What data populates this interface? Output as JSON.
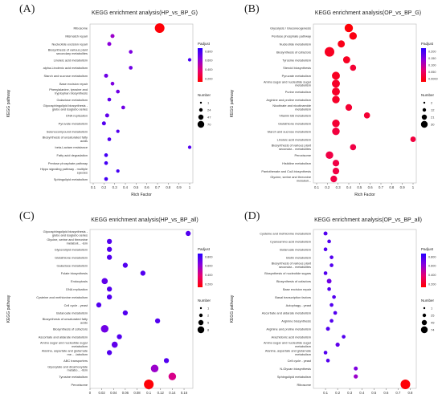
{
  "chart_data": [
    {
      "letter": "(A)",
      "type": "scatter",
      "title": "KEGG enrichment analysis(HP_vs_BP_G)",
      "xlabel": "Rich Factor",
      "ylabel": "KEGG pathway",
      "xticks": [
        "0.1",
        "0.2",
        "0.3",
        "0.4",
        "0.5",
        "0.6",
        "0.7",
        "0.8",
        "0.9",
        "1"
      ],
      "xlim": [
        0.07,
        1.03
      ],
      "legend_padj_title": "Padjust",
      "padj_ticks": [
        "0.800",
        "0.600",
        "0.400",
        "0.200"
      ],
      "legend_number_title": "Number",
      "number_ticks": [
        "1",
        "24",
        "47",
        "70"
      ],
      "points": [
        {
          "label": "Ribosome",
          "x": 0.72,
          "n": 70,
          "p": 0.02
        },
        {
          "label": "Mismatch repair",
          "x": 0.28,
          "n": 3,
          "p": 0.6
        },
        {
          "label": "Nucleotide excision repair",
          "x": 0.25,
          "n": 3,
          "p": 0.65
        },
        {
          "label": "Biosynthesis of various plant secondary metabolites",
          "x": 0.45,
          "n": 2,
          "p": 0.7
        },
        {
          "label": "Linoleic acid metabolism",
          "x": 1.0,
          "n": 1,
          "p": 0.9
        },
        {
          "label": "alpha-Linolenic acid metabolism",
          "x": 0.45,
          "n": 2,
          "p": 0.75
        },
        {
          "label": "Starch and sucrose metabolism",
          "x": 0.22,
          "n": 3,
          "p": 0.75
        },
        {
          "label": "Base excision repair",
          "x": 0.28,
          "n": 2,
          "p": 0.7
        },
        {
          "label": "Phenylalanine, tyrosine and tryptophan biosynthesis",
          "x": 0.33,
          "n": 2,
          "p": 0.75
        },
        {
          "label": "Galactose metabolism",
          "x": 0.25,
          "n": 2,
          "p": 0.8
        },
        {
          "label": "Glycosphingolipid biosynthesis - globo and isoglobo series",
          "x": 0.38,
          "n": 2,
          "p": 0.75
        },
        {
          "label": "DNA replication",
          "x": 0.23,
          "n": 3,
          "p": 0.8
        },
        {
          "label": "Pyruvate metabolism",
          "x": 0.2,
          "n": 3,
          "p": 0.85
        },
        {
          "label": "Selenocompound metabolism",
          "x": 0.33,
          "n": 1,
          "p": 0.85
        },
        {
          "label": "Biosynthesis of unsaturated fatty acids",
          "x": 0.25,
          "n": 2,
          "p": 0.85
        },
        {
          "label": "beta-Lactam resistance",
          "x": 1.0,
          "n": 1,
          "p": 0.85
        },
        {
          "label": "Fatty acid degradation",
          "x": 0.22,
          "n": 2,
          "p": 0.9
        },
        {
          "label": "Pentose phosphate pathway",
          "x": 0.22,
          "n": 2,
          "p": 0.9
        },
        {
          "label": "Hippo signaling pathway - multiple species",
          "x": 0.33,
          "n": 1,
          "p": 0.9
        },
        {
          "label": "Sphingolipid metabolism",
          "x": 0.22,
          "n": 2,
          "p": 0.9
        }
      ]
    },
    {
      "letter": "(B)",
      "type": "scatter",
      "title": "KEGG enrichment analysis(OP_vs_BP_G)",
      "xlabel": "Rich Factor",
      "ylabel": "KEGG pathway",
      "xticks": [
        "0.1",
        "0.2",
        "0.3",
        "0.4",
        "0.5",
        "0.6",
        "0.7",
        "0.8",
        "0.9",
        "1"
      ],
      "xlim": [
        0.07,
        1.03
      ],
      "legend_padj_title": "Padjust",
      "padj_ticks": [
        "0.200",
        "0.150",
        "0.100",
        "0.050",
        "0.0000"
      ],
      "legend_number_title": "Number",
      "number_ticks": [
        "2",
        "12",
        "21",
        "30"
      ],
      "points": [
        {
          "label": "Glycolysis / Gluconeogenesis",
          "x": 0.4,
          "n": 8,
          "p": 0.02
        },
        {
          "label": "Pentose phosphate pathway",
          "x": 0.44,
          "n": 6,
          "p": 0.05
        },
        {
          "label": "Nucleotide metabolism",
          "x": 0.33,
          "n": 5,
          "p": 0.07
        },
        {
          "label": "Biosynthesis of cofactors",
          "x": 0.22,
          "n": 12,
          "p": 0.1
        },
        {
          "label": "Tyrosine metabolism",
          "x": 0.38,
          "n": 5,
          "p": 0.1
        },
        {
          "label": "Steroid biosynthesis",
          "x": 0.44,
          "n": 3,
          "p": 0.15
        },
        {
          "label": "Pyruvate metabolism",
          "x": 0.28,
          "n": 7,
          "p": 0.1
        },
        {
          "label": "Amino sugar and nucleotide sugar metabolism",
          "x": 0.28,
          "n": 7,
          "p": 0.12
        },
        {
          "label": "Purine metabolism",
          "x": 0.28,
          "n": 7,
          "p": 0.12
        },
        {
          "label": "Arginine and proline metabolism",
          "x": 0.28,
          "n": 6,
          "p": 0.12
        },
        {
          "label": "Nicotinate and nicotinamide metabolism",
          "x": 0.4,
          "n": 4,
          "p": 0.15
        },
        {
          "label": "Vitamin B6 metabolism",
          "x": 0.57,
          "n": 3,
          "p": 0.15
        },
        {
          "label": "Glutathione metabolism",
          "x": 0.28,
          "n": 6,
          "p": 0.15
        },
        {
          "label": "Starch and sucrose metabolism",
          "x": 0.28,
          "n": 6,
          "p": 0.18
        },
        {
          "label": "Linoleic acid metabolism",
          "x": 1.0,
          "n": 2,
          "p": 0.18
        },
        {
          "label": "Biosynthesis of various plant secondar... metabolites",
          "x": 0.44,
          "n": 3,
          "p": 0.2
        },
        {
          "label": "Peroxisome",
          "x": 0.22,
          "n": 6,
          "p": 0.2
        },
        {
          "label": "Histidine metabolism",
          "x": 0.28,
          "n": 4,
          "p": 0.2
        },
        {
          "label": "Pantothenate and CoA biosynthesis",
          "x": 0.28,
          "n": 4,
          "p": 0.2
        },
        {
          "label": "Glycine, serine and threonine metaboli...",
          "x": 0.26,
          "n": 4,
          "p": 0.2
        }
      ]
    },
    {
      "letter": "(C)",
      "type": "scatter",
      "title": "KEGG enrichment analysis(HP_vs_BP_all)",
      "xlabel": "Rich Factor",
      "ylabel": "KEGG pathway",
      "xticks": [
        "0",
        "0.02",
        "0.04",
        "0.06",
        "0.08",
        "0.1",
        "0.12",
        "0.14",
        "0.16"
      ],
      "xlim": [
        0,
        0.175
      ],
      "legend_padj_title": "Padjust",
      "padj_ticks": [
        "0.800",
        "0.600",
        "0.400",
        "0.200"
      ],
      "legend_number_title": "Number",
      "number_ticks": [
        "1",
        "2",
        "5",
        "8"
      ],
      "points": [
        {
          "label": "Glycosphingolipid biosynthesis - globo and isoglobo series",
          "x": 0.167,
          "n": 1,
          "p": 0.85
        },
        {
          "label": "Glycine, serine and threonine metaboli... -ism",
          "x": 0.033,
          "n": 1,
          "p": 0.85
        },
        {
          "label": "Glycerolipid metabolism",
          "x": 0.033,
          "n": 1,
          "p": 0.85
        },
        {
          "label": "Glutathione metabolism",
          "x": 0.033,
          "n": 1,
          "p": 0.85
        },
        {
          "label": "Galactose metabolism",
          "x": 0.06,
          "n": 1,
          "p": 0.85
        },
        {
          "label": "Folate biosynthesis",
          "x": 0.09,
          "n": 1,
          "p": 0.85
        },
        {
          "label": "Endocytosis",
          "x": 0.025,
          "n": 2,
          "p": 0.8
        },
        {
          "label": "DNA replication",
          "x": 0.033,
          "n": 1,
          "p": 0.85
        },
        {
          "label": "Cysteine and methionine metabolism",
          "x": 0.033,
          "n": 1,
          "p": 0.85
        },
        {
          "label": "Cell cycle - yeast",
          "x": 0.015,
          "n": 1,
          "p": 0.85
        },
        {
          "label": "Butanoate metabolism",
          "x": 0.06,
          "n": 1,
          "p": 0.85
        },
        {
          "label": "Biosynthesis of unsaturated fatty acids",
          "x": 0.115,
          "n": 1,
          "p": 0.85
        },
        {
          "label": "Biosynthesis of cofactors",
          "x": 0.025,
          "n": 4,
          "p": 0.75
        },
        {
          "label": "Ascorbate and aldarate metabolism",
          "x": 0.05,
          "n": 1,
          "p": 0.85
        },
        {
          "label": "Amino sugar and nucleotide sugar metabolism",
          "x": 0.042,
          "n": 2,
          "p": 0.8
        },
        {
          "label": "Alanine, aspartate and glutamate me... -tabolism",
          "x": 0.033,
          "n": 1,
          "p": 0.85
        },
        {
          "label": "ABC transporters",
          "x": 0.13,
          "n": 1,
          "p": 0.85
        },
        {
          "label": "Glyoxylate and dicarboxylate metabo... -lism",
          "x": 0.11,
          "n": 4,
          "p": 0.6
        },
        {
          "label": "Tyrosine metabolism",
          "x": 0.14,
          "n": 4,
          "p": 0.4
        },
        {
          "label": "Peroxisome",
          "x": 0.1,
          "n": 8,
          "p": 0.02
        }
      ]
    },
    {
      "letter": "(D)",
      "type": "scatter",
      "title": "KEGG enrichment analysis(OP_vs_BP_all)",
      "xlabel": "Rich Factor",
      "ylabel": "KEGG pathway",
      "xticks": [
        "0.1",
        "0.2",
        "0.3",
        "0.4",
        "0.5",
        "0.6",
        "0.7",
        "0.8"
      ],
      "xlim": [
        0,
        0.85
      ],
      "legend_padj_title": "Padjust",
      "padj_ticks": [
        "0.800",
        "0.600",
        "0.400",
        "0.200"
      ],
      "legend_number_title": "Number",
      "number_ticks": [
        "1",
        "25",
        "49",
        "74"
      ],
      "points": [
        {
          "label": "Cysteine and methionine metabolism",
          "x": 0.1,
          "n": 3,
          "p": 0.85
        },
        {
          "label": "Cyanoamino acid metabolism",
          "x": 0.13,
          "n": 2,
          "p": 0.85
        },
        {
          "label": "Butanoate metabolism",
          "x": 0.1,
          "n": 2,
          "p": 0.85
        },
        {
          "label": "Biotin metabolism",
          "x": 0.15,
          "n": 2,
          "p": 0.85
        },
        {
          "label": "Biosynthesis of various plant secondar... metabolites",
          "x": 0.15,
          "n": 2,
          "p": 0.85
        },
        {
          "label": "Biosynthesis of nucleotide sugars",
          "x": 0.1,
          "n": 2,
          "p": 0.85
        },
        {
          "label": "Biosynthesis of cofactors",
          "x": 0.13,
          "n": 7,
          "p": 0.75
        },
        {
          "label": "Base excision repair",
          "x": 0.13,
          "n": 2,
          "p": 0.85
        },
        {
          "label": "Basal transcription factors",
          "x": 0.17,
          "n": 2,
          "p": 0.85
        },
        {
          "label": "Autophagy - yeast",
          "x": 0.15,
          "n": 2,
          "p": 0.85
        },
        {
          "label": "Ascorbate and aldarate metabolism",
          "x": 0.18,
          "n": 2,
          "p": 0.85
        },
        {
          "label": "Arginine biosynthesis",
          "x": 0.15,
          "n": 2,
          "p": 0.85
        },
        {
          "label": "Arginine and proline metabolism",
          "x": 0.12,
          "n": 3,
          "p": 0.85
        },
        {
          "label": "Arachidonic acid metabolism",
          "x": 0.25,
          "n": 2,
          "p": 0.85
        },
        {
          "label": "Amino sugar and nucleotide sugar metabolism",
          "x": 0.2,
          "n": 4,
          "p": 0.8
        },
        {
          "label": "Alanine, aspartate and glutamate metabolism",
          "x": 0.1,
          "n": 2,
          "p": 0.85
        },
        {
          "label": "Cell cycle - yeast",
          "x": 0.12,
          "n": 2,
          "p": 0.85
        },
        {
          "label": "N-Glycan biosynthesis",
          "x": 0.35,
          "n": 3,
          "p": 0.7
        },
        {
          "label": "Sphingolipid metabolism",
          "x": 0.35,
          "n": 4,
          "p": 0.6
        },
        {
          "label": "Ribosome",
          "x": 0.76,
          "n": 74,
          "p": 0.02
        }
      ]
    }
  ]
}
